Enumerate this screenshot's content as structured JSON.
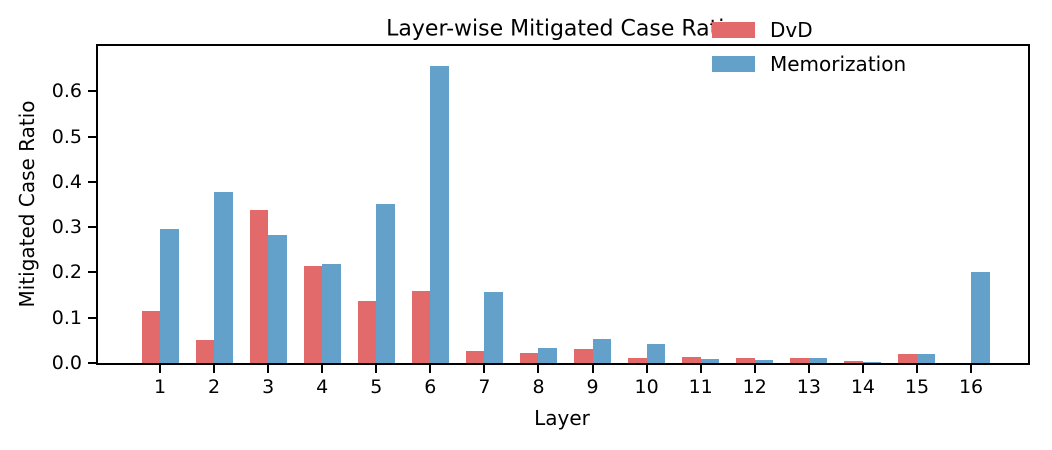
{
  "chart_data": {
    "type": "bar",
    "title": "Layer-wise Mitigated Case Ratio",
    "xlabel": "Layer",
    "ylabel": "Mitigated Case Ratio",
    "categories": [
      "1",
      "2",
      "3",
      "4",
      "5",
      "6",
      "7",
      "8",
      "9",
      "10",
      "11",
      "12",
      "13",
      "14",
      "15",
      "16"
    ],
    "series": [
      {
        "name": "DvD",
        "color": "#e26a6a",
        "values": [
          0.115,
          0.051,
          0.337,
          0.215,
          0.138,
          0.16,
          0.026,
          0.022,
          0.031,
          0.011,
          0.013,
          0.01,
          0.012,
          0.004,
          0.019,
          0.0
        ]
      },
      {
        "name": "Memorization",
        "color": "#63a0ca",
        "values": [
          0.295,
          0.378,
          0.282,
          0.218,
          0.351,
          0.655,
          0.156,
          0.034,
          0.053,
          0.042,
          0.008,
          0.006,
          0.011,
          0.002,
          0.021,
          0.201
        ]
      }
    ],
    "ylim": [
      0,
      0.7
    ],
    "yticks": [
      0.0,
      0.1,
      0.2,
      0.3,
      0.4,
      0.5,
      0.6
    ],
    "ytick_labels": [
      "0.0",
      "0.1",
      "0.2",
      "0.3",
      "0.4",
      "0.5",
      "0.6"
    ],
    "grid": false,
    "legend_position": "upper right",
    "legend_frame": false
  }
}
